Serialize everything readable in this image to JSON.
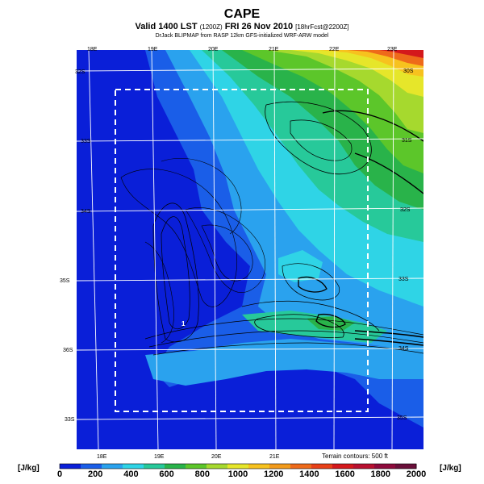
{
  "header": {
    "title": "CAPE",
    "valid_main": "Valid 1400 LST",
    "valid_code": "(1200Z)",
    "valid_date": "FRI 26 Nov 2010",
    "valid_forecast": "[18hrFcst@2200Z]",
    "credit": "DrJack BLIPMAP from RASP 12km GFS-initialized WRF-ARW model"
  },
  "map": {
    "top_lon_labels": [
      "18E",
      "19E",
      "20E",
      "21E",
      "22E",
      "23E"
    ],
    "bottom_lon_labels": [
      "18E",
      "19E",
      "20E",
      "21E"
    ],
    "left_lat_labels": [
      "32S",
      "33S",
      "34S",
      "35S",
      "36S"
    ],
    "mid_lat_labels": [
      "33S",
      "34S",
      "35S"
    ],
    "right_lat_labels": [
      "30S",
      "31S",
      "32S",
      "33S",
      "34S",
      "35S"
    ],
    "site_marker": "1",
    "terrain_note": "Terrain contours: 500 ft"
  },
  "colorbar": {
    "unit": "[J/kg]",
    "ticks": [
      "0",
      "200",
      "400",
      "600",
      "800",
      "1000",
      "1200",
      "1400",
      "1600",
      "1800",
      "2000"
    ],
    "colors": [
      "#0a1fd8",
      "#1a5ee8",
      "#2aa2ee",
      "#2fd4e6",
      "#27c99a",
      "#29b34a",
      "#5cc62a",
      "#a6d92e",
      "#e6e62a",
      "#f7c21e",
      "#f29a1a",
      "#ee6a1a",
      "#e84018",
      "#d4181c",
      "#b81030",
      "#8e0a3c",
      "#6a0f3a"
    ]
  }
}
